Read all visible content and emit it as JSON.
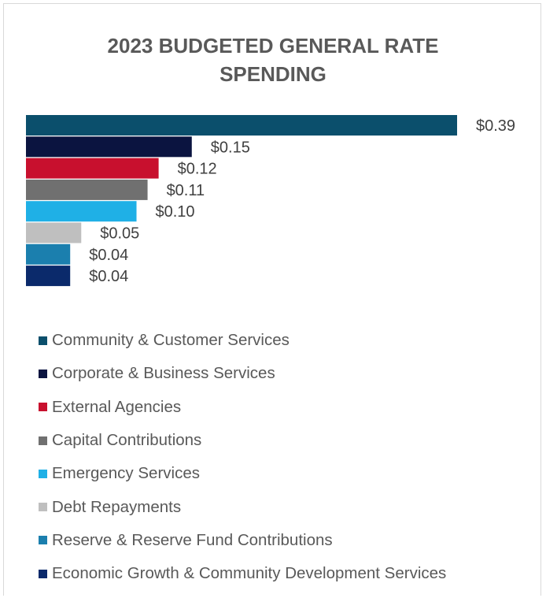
{
  "chart_data": {
    "type": "bar",
    "orientation": "horizontal",
    "title": "2023 BUDGETED GENERAL RATE SPENDING",
    "title_lines": [
      "2023 BUDGETED GENERAL RATE",
      "SPENDING"
    ],
    "categories": [
      "Community & Customer Services",
      "Corporate & Business Services",
      "External Agencies",
      "Capital Contributions",
      "Emergency Services",
      "Debt Repayments",
      "Reserve & Reserve Fund Contributions",
      "Economic Growth & Community Development Services"
    ],
    "values": [
      0.39,
      0.15,
      0.12,
      0.11,
      0.1,
      0.05,
      0.04,
      0.04
    ],
    "data_labels": [
      "$0.39",
      "$0.15",
      "$0.12",
      "$0.11",
      "$0.10",
      "$0.05",
      "$0.04",
      "$0.04"
    ],
    "colors": [
      "#0b4f6c",
      "#0b1440",
      "#c8102e",
      "#707070",
      "#1fb0e6",
      "#bfbfbf",
      "#1b7fae",
      "#0b2a6b"
    ],
    "xlabel": "",
    "ylabel": "",
    "xlim": [
      0,
      0.39
    ],
    "grid": false,
    "legend_position": "bottom"
  }
}
